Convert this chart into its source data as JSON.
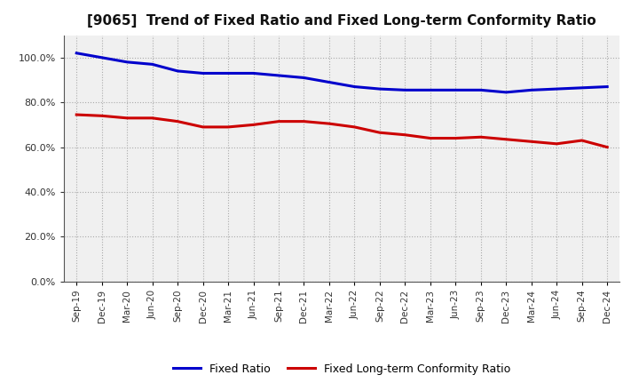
{
  "title": "[9065]  Trend of Fixed Ratio and Fixed Long-term Conformity Ratio",
  "x_labels": [
    "Sep-19",
    "Dec-19",
    "Mar-20",
    "Jun-20",
    "Sep-20",
    "Dec-20",
    "Mar-21",
    "Jun-21",
    "Sep-21",
    "Dec-21",
    "Mar-22",
    "Jun-22",
    "Sep-22",
    "Dec-22",
    "Mar-23",
    "Jun-23",
    "Sep-23",
    "Dec-23",
    "Mar-24",
    "Jun-24",
    "Sep-24",
    "Dec-24"
  ],
  "fixed_ratio": [
    1.02,
    1.0,
    0.98,
    0.97,
    0.94,
    0.93,
    0.93,
    0.93,
    0.92,
    0.91,
    0.89,
    0.87,
    0.86,
    0.855,
    0.855,
    0.855,
    0.855,
    0.845,
    0.855,
    0.86,
    0.865,
    0.87
  ],
  "fixed_long_term": [
    0.745,
    0.74,
    0.73,
    0.73,
    0.715,
    0.69,
    0.69,
    0.7,
    0.715,
    0.715,
    0.705,
    0.69,
    0.665,
    0.655,
    0.64,
    0.64,
    0.645,
    0.635,
    0.625,
    0.615,
    0.63,
    0.6
  ],
  "fixed_ratio_color": "#0000cc",
  "fixed_long_term_color": "#cc0000",
  "ylim": [
    0.0,
    1.1
  ],
  "yticks": [
    0.0,
    0.2,
    0.4,
    0.6,
    0.8,
    1.0
  ],
  "legend_fixed_ratio": "Fixed Ratio",
  "legend_fixed_long_term": "Fixed Long-term Conformity Ratio",
  "bg_color": "#ffffff",
  "plot_bg_color": "#f0f0f0",
  "grid_color": "#aaaaaa",
  "line_width": 2.2,
  "title_fontsize": 11
}
